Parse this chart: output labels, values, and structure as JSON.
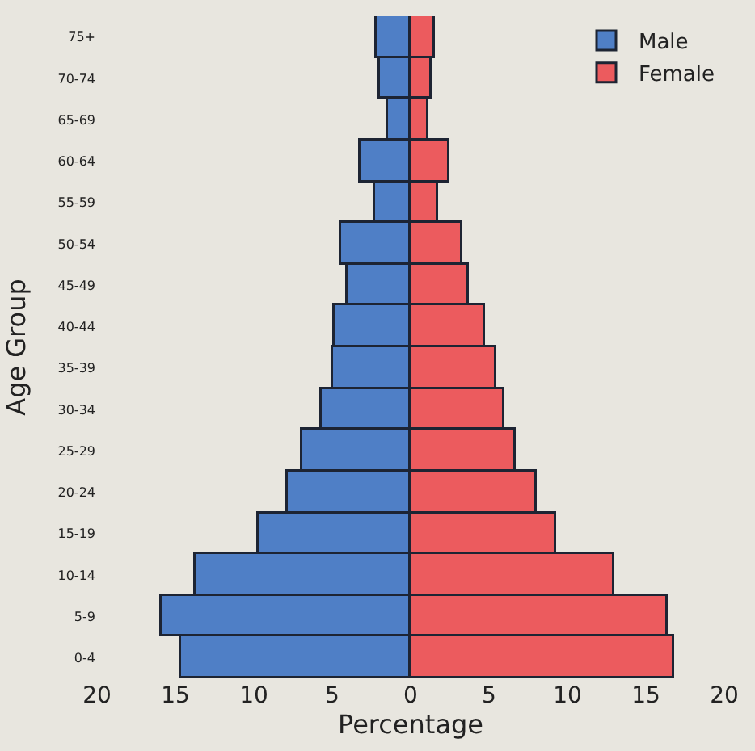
{
  "chart_data": {
    "type": "bar",
    "orientation": "horizontal",
    "stacked": true,
    "xlabel": "Percentage",
    "ylabel": "Age Group",
    "categories": [
      "75+",
      "70-74",
      "65-69",
      "60-64",
      "55-59",
      "50-54",
      "45-49",
      "40-44",
      "35-39",
      "30-34",
      "25-29",
      "20-24",
      "15-19",
      "10-14",
      "5-9",
      "0-4"
    ],
    "series": [
      {
        "name": "Male",
        "color": "#4f7fc6",
        "values": [
          -2.2,
          -2.0,
          -1.4,
          -3.2,
          -2.3,
          -4.4,
          -4.0,
          -4.8,
          -4.9,
          -5.7,
          -6.9,
          -7.8,
          -9.7,
          -13.7,
          -15.9,
          -14.6
        ]
      },
      {
        "name": "Female",
        "color": "#ec5b5e",
        "values": [
          1.5,
          1.3,
          1.1,
          2.5,
          1.8,
          3.3,
          3.7,
          4.7,
          5.5,
          6.0,
          6.7,
          8.0,
          9.3,
          13.0,
          16.4,
          16.8
        ]
      }
    ],
    "xlim": [
      -20,
      20
    ],
    "xticks": [
      {
        "value": -20,
        "label": "20"
      },
      {
        "value": -15,
        "label": "15"
      },
      {
        "value": -10,
        "label": "10"
      },
      {
        "value": -5,
        "label": "5"
      },
      0,
      5,
      10,
      15,
      20
    ],
    "legend": "top right",
    "grid": false
  }
}
